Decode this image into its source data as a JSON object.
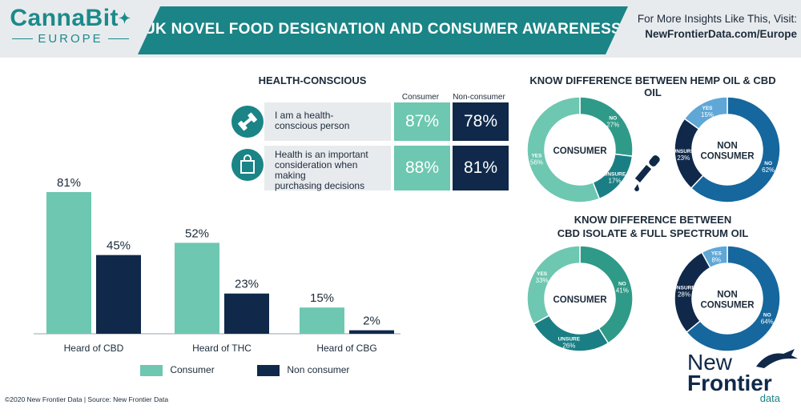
{
  "header": {
    "logo_main": "CannaBit",
    "logo_sub": "EUROPE",
    "title": "UK NOVEL FOOD DESIGNATION AND CONSUMER AWARENESS",
    "insights_line1": "For More Insights Like This, Visit:",
    "insights_line2": "NewFrontierData.com/Europe"
  },
  "colors": {
    "consumer": "#6dc7b1",
    "non_consumer": "#10294a",
    "teal": "#1a8486",
    "donut_consumer_yes": "#6dc7b1",
    "donut_consumer_no": "#2f9a88",
    "donut_consumer_unsure": "#1a7f84",
    "donut_non_yes": "#5fa7d6",
    "donut_non_no": "#16679d",
    "donut_non_unsure": "#10294a"
  },
  "chart_data": [
    {
      "type": "bar",
      "categories": [
        "Heard of CBD",
        "Heard of THC",
        "Heard of CBG"
      ],
      "series": [
        {
          "name": "Consumer",
          "values": [
            81,
            52,
            15
          ],
          "labels": [
            "81%",
            "52%",
            "15%"
          ]
        },
        {
          "name": "Non consumer",
          "values": [
            45,
            23,
            2
          ],
          "labels": [
            "45%",
            "23%",
            "2%"
          ]
        }
      ],
      "ylim": [
        0,
        100
      ],
      "legend": "bottom"
    },
    {
      "type": "table",
      "title": "HEALTH-CONSCIOUS",
      "columns": [
        "Consumer",
        "Non-consumer"
      ],
      "rows": [
        {
          "label": "I am a health-conscious person",
          "label_lines": [
            "I am a health-",
            "conscious person"
          ],
          "values": [
            "87%",
            "78%"
          ]
        },
        {
          "label": "Health is an important consideration when making purchasing decisions",
          "label_lines": [
            "Health is an important",
            "consideration when making",
            "purchasing decisions"
          ],
          "values": [
            "88%",
            "81%"
          ]
        }
      ]
    },
    {
      "type": "pie",
      "title": "KNOW DIFFERENCE BETWEEN HEMP OIL & CBD OIL",
      "charts": [
        {
          "center": [
            "CONSUMER"
          ],
          "slices": [
            {
              "label": "NO",
              "value": 27
            },
            {
              "label": "UNSURE",
              "value": 17
            },
            {
              "label": "YES",
              "value": 56
            }
          ]
        },
        {
          "center": [
            "NON",
            "CONSUMER"
          ],
          "slices": [
            {
              "label": "NO",
              "value": 62
            },
            {
              "label": "UNSURE",
              "value": 23
            },
            {
              "label": "YES",
              "value": 15
            }
          ]
        }
      ]
    },
    {
      "type": "pie",
      "title_lines": [
        "KNOW DIFFERENCE BETWEEN",
        "CBD ISOLATE & FULL SPECTRUM OIL"
      ],
      "charts": [
        {
          "center": [
            "CONSUMER"
          ],
          "slices": [
            {
              "label": "NO",
              "value": 41
            },
            {
              "label": "UNSURE",
              "value": 26
            },
            {
              "label": "YES",
              "value": 33
            }
          ]
        },
        {
          "center": [
            "NON",
            "CONSUMER"
          ],
          "slices": [
            {
              "label": "NO",
              "value": 64
            },
            {
              "label": "UNSURE",
              "value": 28
            },
            {
              "label": "YES",
              "value": 8
            }
          ]
        }
      ]
    }
  ],
  "footer": {
    "text": "©2020 New Frontier Data | Source: New Frontier Data",
    "brand_line1": "New",
    "brand_line2": "Frontier",
    "brand_line3": "data"
  }
}
